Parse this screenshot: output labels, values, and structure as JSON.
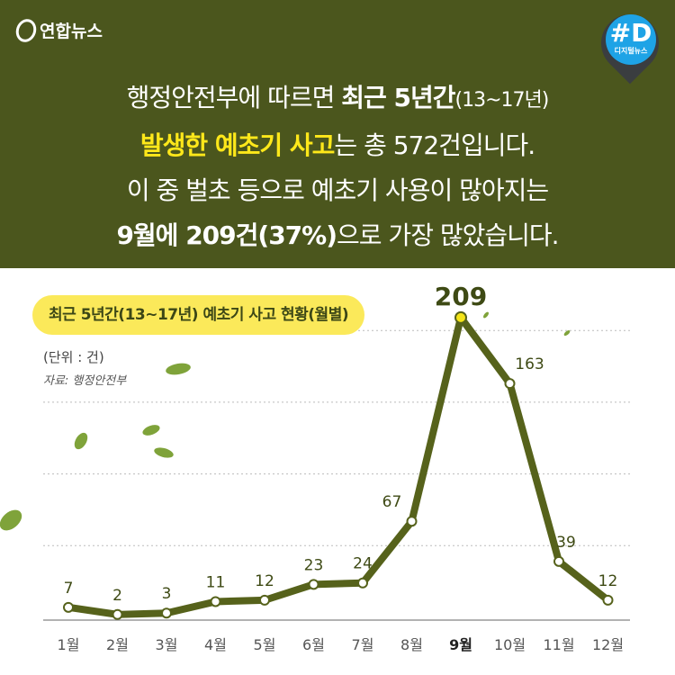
{
  "header": {
    "logo_text": "연합뉴스",
    "badge_big": "#D",
    "badge_small": "디지털뉴스"
  },
  "message": {
    "l1a": "행정안전부에 따르면 ",
    "l1b": "최근 5년간",
    "l1c": "(13~17년)",
    "l2a": "발생한 예초기 사고",
    "l2b": "는 총 572건입니다.",
    "l3": "이 중 벌초 등으로 예초기 사용이 많아지는",
    "l4a": "9월에 209건(37%)",
    "l4b": "으로 가장 많았습니다."
  },
  "chart_data": {
    "type": "line",
    "title": "최근 5년간(13~17년) 예초기 사고 현황(월별)",
    "unit_label": "(단위 : 건)",
    "source": "자료: 행정안전부",
    "categories": [
      "1월",
      "2월",
      "3월",
      "4월",
      "5월",
      "6월",
      "7월",
      "8월",
      "9월",
      "10월",
      "11월",
      "12월"
    ],
    "values": [
      7,
      2,
      3,
      11,
      12,
      23,
      24,
      67,
      209,
      163,
      39,
      12
    ],
    "highlight": "9월",
    "ylim": [
      0,
      210
    ],
    "grid": true,
    "colors": {
      "line": "#56621b",
      "highlight": "#f4e418",
      "banner": "#4b561d",
      "pill": "#fbe95a"
    }
  }
}
